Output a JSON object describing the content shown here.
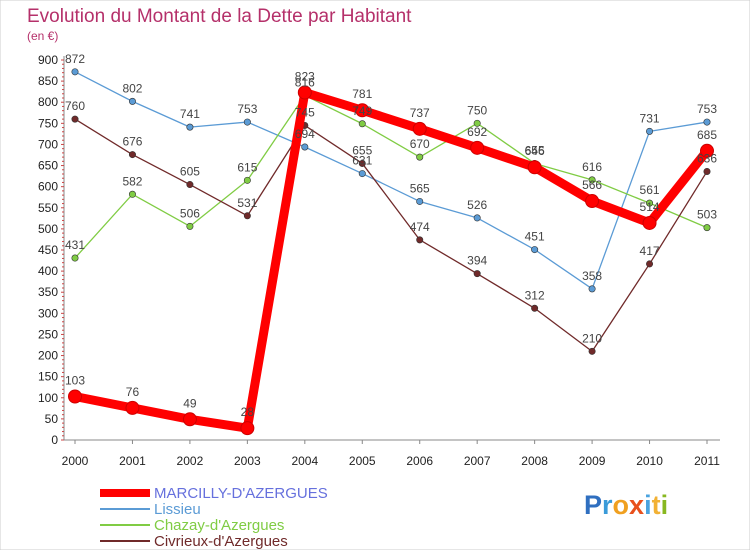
{
  "chart_data": {
    "type": "line",
    "title": "Evolution du Montant de la Dette par Habitant",
    "subtitle": "(en €)",
    "x": [
      "2000",
      "2001",
      "2002",
      "2003",
      "2004",
      "2005",
      "2006",
      "2007",
      "2008",
      "2009",
      "2010",
      "2011"
    ],
    "ylim": [
      0,
      900
    ],
    "yticks": [
      0,
      50,
      100,
      150,
      200,
      250,
      300,
      350,
      400,
      450,
      500,
      550,
      600,
      650,
      700,
      750,
      800,
      850,
      900
    ],
    "grid": false,
    "legend_position": "bottom-left",
    "series": [
      {
        "name": "Lissieu",
        "color": "#5b9bd5",
        "values": [
          872,
          802,
          741,
          753,
          694,
          631,
          565,
          526,
          451,
          358,
          731,
          753
        ]
      },
      {
        "name": "Chazay-d'Azergues",
        "color": "#80cc44",
        "values": [
          431,
          582,
          506,
          615,
          816,
          749,
          670,
          750,
          655,
          616,
          561,
          503
        ]
      },
      {
        "name": "Civrieux-d'Azergues",
        "color": "#702a2a",
        "values": [
          760,
          676,
          605,
          531,
          745,
          655,
          474,
          394,
          312,
          210,
          417,
          636
        ]
      },
      {
        "name": "MARCILLY-D'AZERGUES",
        "color": "#ff0000",
        "values": [
          103,
          76,
          49,
          28,
          823,
          781,
          737,
          692,
          646,
          566,
          514,
          685
        ]
      }
    ]
  },
  "logo": {
    "text": "Proxiti"
  }
}
